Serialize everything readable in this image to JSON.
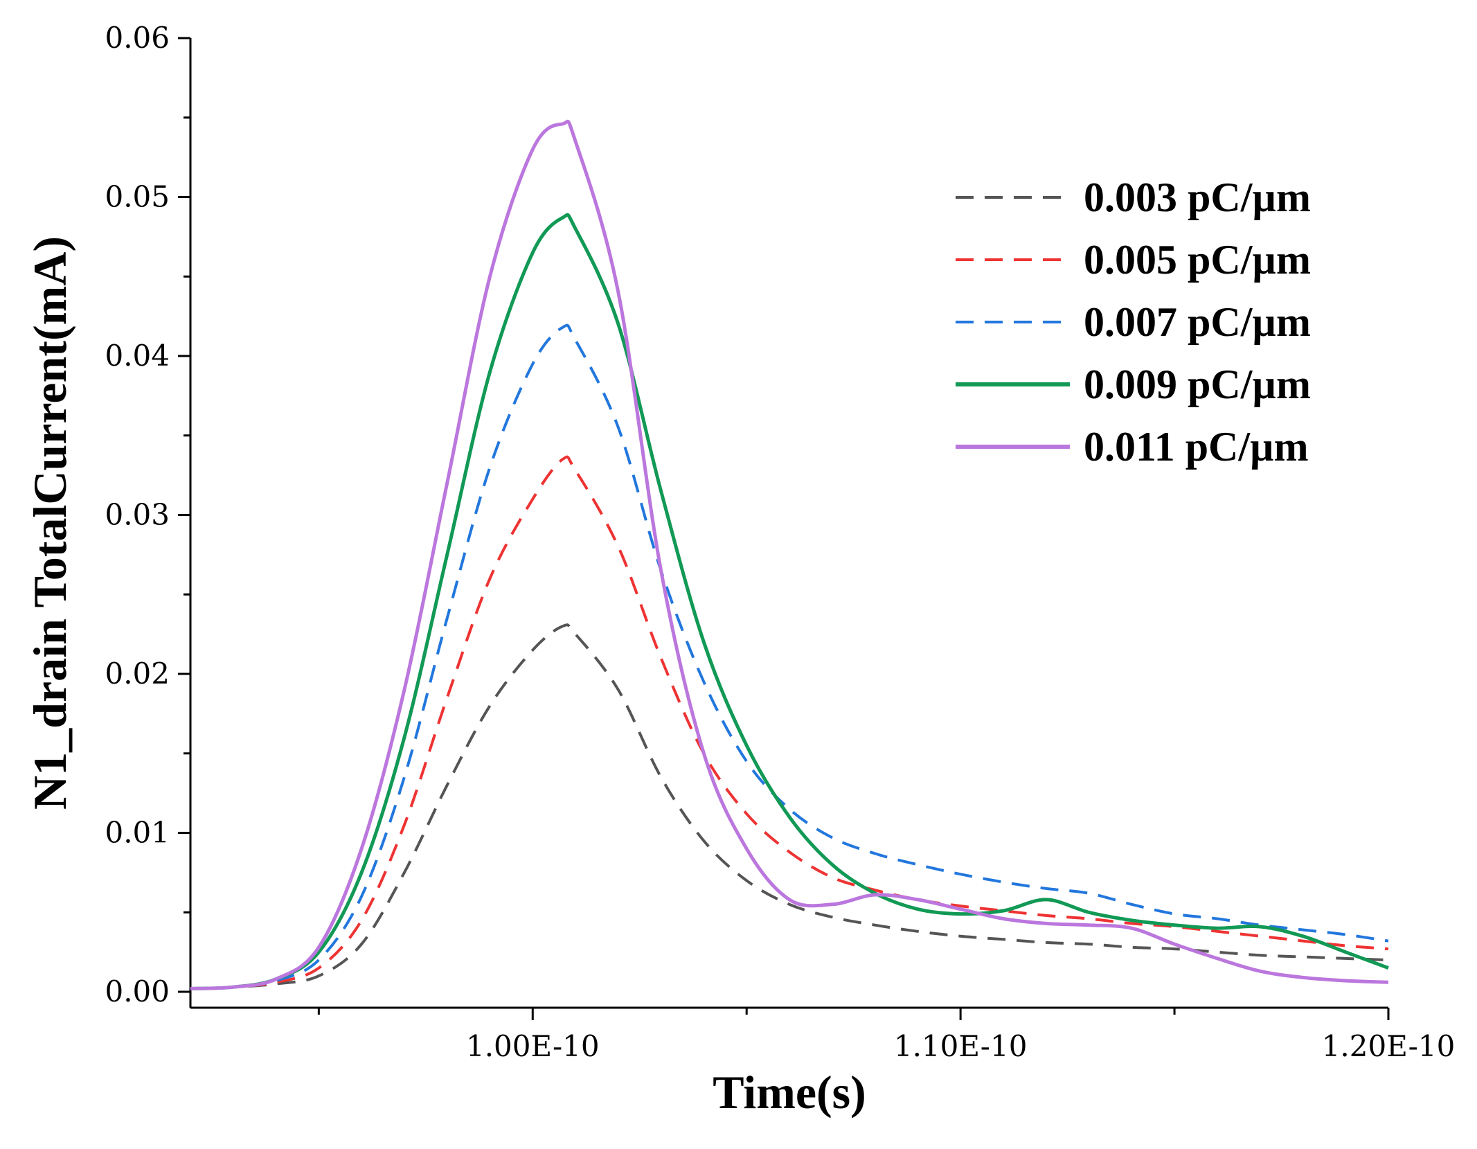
{
  "chart_data": {
    "type": "line",
    "title": "",
    "xlabel": "Time(s)",
    "ylabel": "N1_drain TotalCurrent(mA)",
    "xlim": [
      9.2e-11,
      1.2e-10
    ],
    "ylim": [
      -0.001,
      0.06
    ],
    "grid": false,
    "legend_position": "top-right",
    "x_ticks": [
      {
        "value": 1e-10,
        "label": "1.00E-10"
      },
      {
        "value": 1.1e-10,
        "label": "1.10E-10"
      },
      {
        "value": 1.2e-10,
        "label": "1.20E-10"
      }
    ],
    "x_minor_ticks": [
      9.5e-11,
      1.05e-10,
      1.15e-10
    ],
    "y_ticks": [
      {
        "value": 0.0,
        "label": "0.00"
      },
      {
        "value": 0.01,
        "label": "0.01"
      },
      {
        "value": 0.02,
        "label": "0.02"
      },
      {
        "value": 0.03,
        "label": "0.03"
      },
      {
        "value": 0.04,
        "label": "0.04"
      },
      {
        "value": 0.05,
        "label": "0.05"
      },
      {
        "value": 0.06,
        "label": "0.06"
      }
    ],
    "y_minor_ticks": [
      0.005,
      0.015,
      0.025,
      0.035,
      0.045,
      0.055
    ],
    "x": [
      9.2e-11,
      9.3e-11,
      9.4e-11,
      9.5e-11,
      9.6e-11,
      9.7e-11,
      9.8e-11,
      9.9e-11,
      1e-10,
      1.007e-10,
      1.01e-10,
      1.02e-10,
      1.03e-10,
      1.04e-10,
      1.05e-10,
      1.06e-10,
      1.07e-10,
      1.08e-10,
      1.09e-10,
      1.1e-10,
      1.11e-10,
      1.12e-10,
      1.13e-10,
      1.14e-10,
      1.15e-10,
      1.16e-10,
      1.17e-10,
      1.18e-10,
      1.19e-10,
      1.2e-10
    ],
    "series": [
      {
        "name": "0.003 pC/µm",
        "color": "#555555",
        "dash": "dashed",
        "values": [
          0.0002,
          0.0003,
          0.0005,
          0.001,
          0.003,
          0.0075,
          0.013,
          0.018,
          0.0215,
          0.023,
          0.0225,
          0.019,
          0.0135,
          0.0095,
          0.007,
          0.0055,
          0.0047,
          0.0042,
          0.0038,
          0.0035,
          0.0033,
          0.0031,
          0.003,
          0.0028,
          0.0027,
          0.0025,
          0.0023,
          0.0022,
          0.0021,
          0.002
        ]
      },
      {
        "name": "0.005 pC/µm",
        "color": "#ee3333",
        "dash": "dashed",
        "values": [
          0.0002,
          0.0003,
          0.0006,
          0.0015,
          0.0045,
          0.0105,
          0.0185,
          0.026,
          0.031,
          0.0335,
          0.0328,
          0.028,
          0.021,
          0.015,
          0.0112,
          0.0088,
          0.0072,
          0.0064,
          0.0058,
          0.0054,
          0.0051,
          0.0048,
          0.0046,
          0.0043,
          0.0041,
          0.0038,
          0.0035,
          0.0032,
          0.0029,
          0.0027
        ]
      },
      {
        "name": "0.007 pC/µm",
        "color": "#2277dd",
        "dash": "dashed",
        "values": [
          0.0002,
          0.0003,
          0.0007,
          0.002,
          0.006,
          0.0135,
          0.0235,
          0.033,
          0.0395,
          0.0418,
          0.041,
          0.0355,
          0.0265,
          0.0195,
          0.0145,
          0.0115,
          0.0097,
          0.0087,
          0.008,
          0.0074,
          0.0069,
          0.0065,
          0.0062,
          0.0055,
          0.0049,
          0.0046,
          0.0042,
          0.0039,
          0.0036,
          0.0032
        ]
      },
      {
        "name": "0.009 pC/µm",
        "color": "#119955",
        "dash": "solid",
        "values": [
          0.0002,
          0.0003,
          0.0008,
          0.0025,
          0.0075,
          0.016,
          0.0275,
          0.039,
          0.0465,
          0.0487,
          0.048,
          0.042,
          0.0315,
          0.022,
          0.0155,
          0.011,
          0.008,
          0.0062,
          0.0052,
          0.0049,
          0.0051,
          0.0058,
          0.005,
          0.0045,
          0.0042,
          0.004,
          0.0041,
          0.0035,
          0.0025,
          0.0015
        ]
      },
      {
        "name": "0.011 pC/µm",
        "color": "#bb77dd",
        "dash": "solid",
        "values": [
          0.0002,
          0.0003,
          0.0008,
          0.0028,
          0.009,
          0.019,
          0.032,
          0.045,
          0.053,
          0.0546,
          0.0535,
          0.044,
          0.0265,
          0.015,
          0.009,
          0.0058,
          0.0055,
          0.0061,
          0.0058,
          0.0052,
          0.0046,
          0.0043,
          0.0042,
          0.004,
          0.003,
          0.0021,
          0.0013,
          0.0009,
          0.0007,
          0.0006
        ]
      }
    ]
  }
}
